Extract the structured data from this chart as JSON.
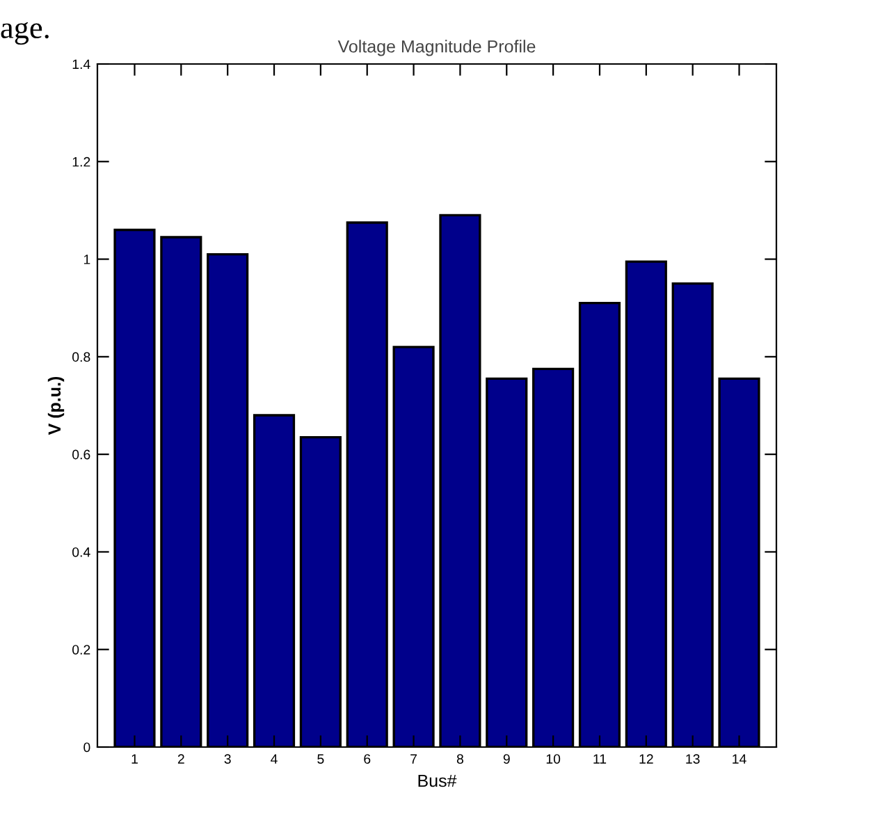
{
  "chart_data": {
    "type": "bar",
    "title": "Voltage Magnitude Profile",
    "xlabel": "Bus#",
    "ylabel": "V (p.u.)",
    "annotations": [
      "age."
    ],
    "categories": [
      "1",
      "2",
      "3",
      "4",
      "5",
      "6",
      "7",
      "8",
      "9",
      "10",
      "11",
      "12",
      "13",
      "14"
    ],
    "values": [
      1.06,
      1.045,
      1.01,
      0.68,
      0.635,
      1.075,
      0.82,
      1.09,
      0.755,
      0.775,
      0.91,
      0.995,
      0.95,
      0.755
    ],
    "color": "#00008b",
    "ylim": [
      0,
      1.4
    ],
    "yticks": [
      0,
      0.2,
      0.4,
      0.6,
      0.8,
      1,
      1.2,
      1.4
    ],
    "grid": false
  }
}
